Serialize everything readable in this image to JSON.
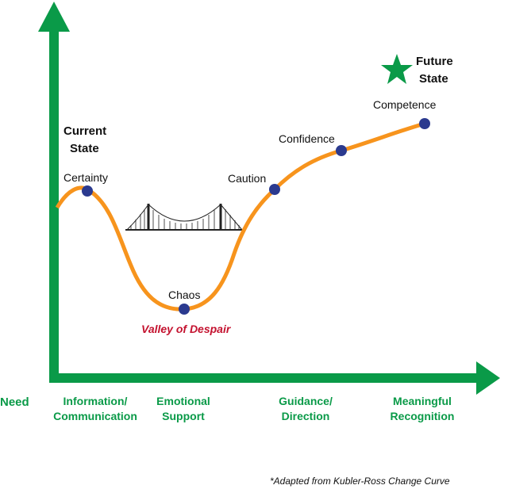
{
  "axis": {
    "y_label": [
      "Current",
      "State"
    ],
    "x_start_label": "Need"
  },
  "goal": {
    "label": [
      "Future",
      "State"
    ]
  },
  "nodes": [
    {
      "label": "Certainty"
    },
    {
      "label": "Chaos"
    },
    {
      "label": "Caution"
    },
    {
      "label": "Confidence"
    },
    {
      "label": "Competence"
    }
  ],
  "valley_label": "Valley of Despair",
  "needs": [
    [
      "Information/",
      "Communication"
    ],
    [
      "Emotional",
      "Support"
    ],
    [
      "Guidance/",
      "Direction"
    ],
    [
      "Meaningful",
      "Recognition"
    ]
  ],
  "footnote": "*Adapted from Kubler-Ross Change Curve"
}
